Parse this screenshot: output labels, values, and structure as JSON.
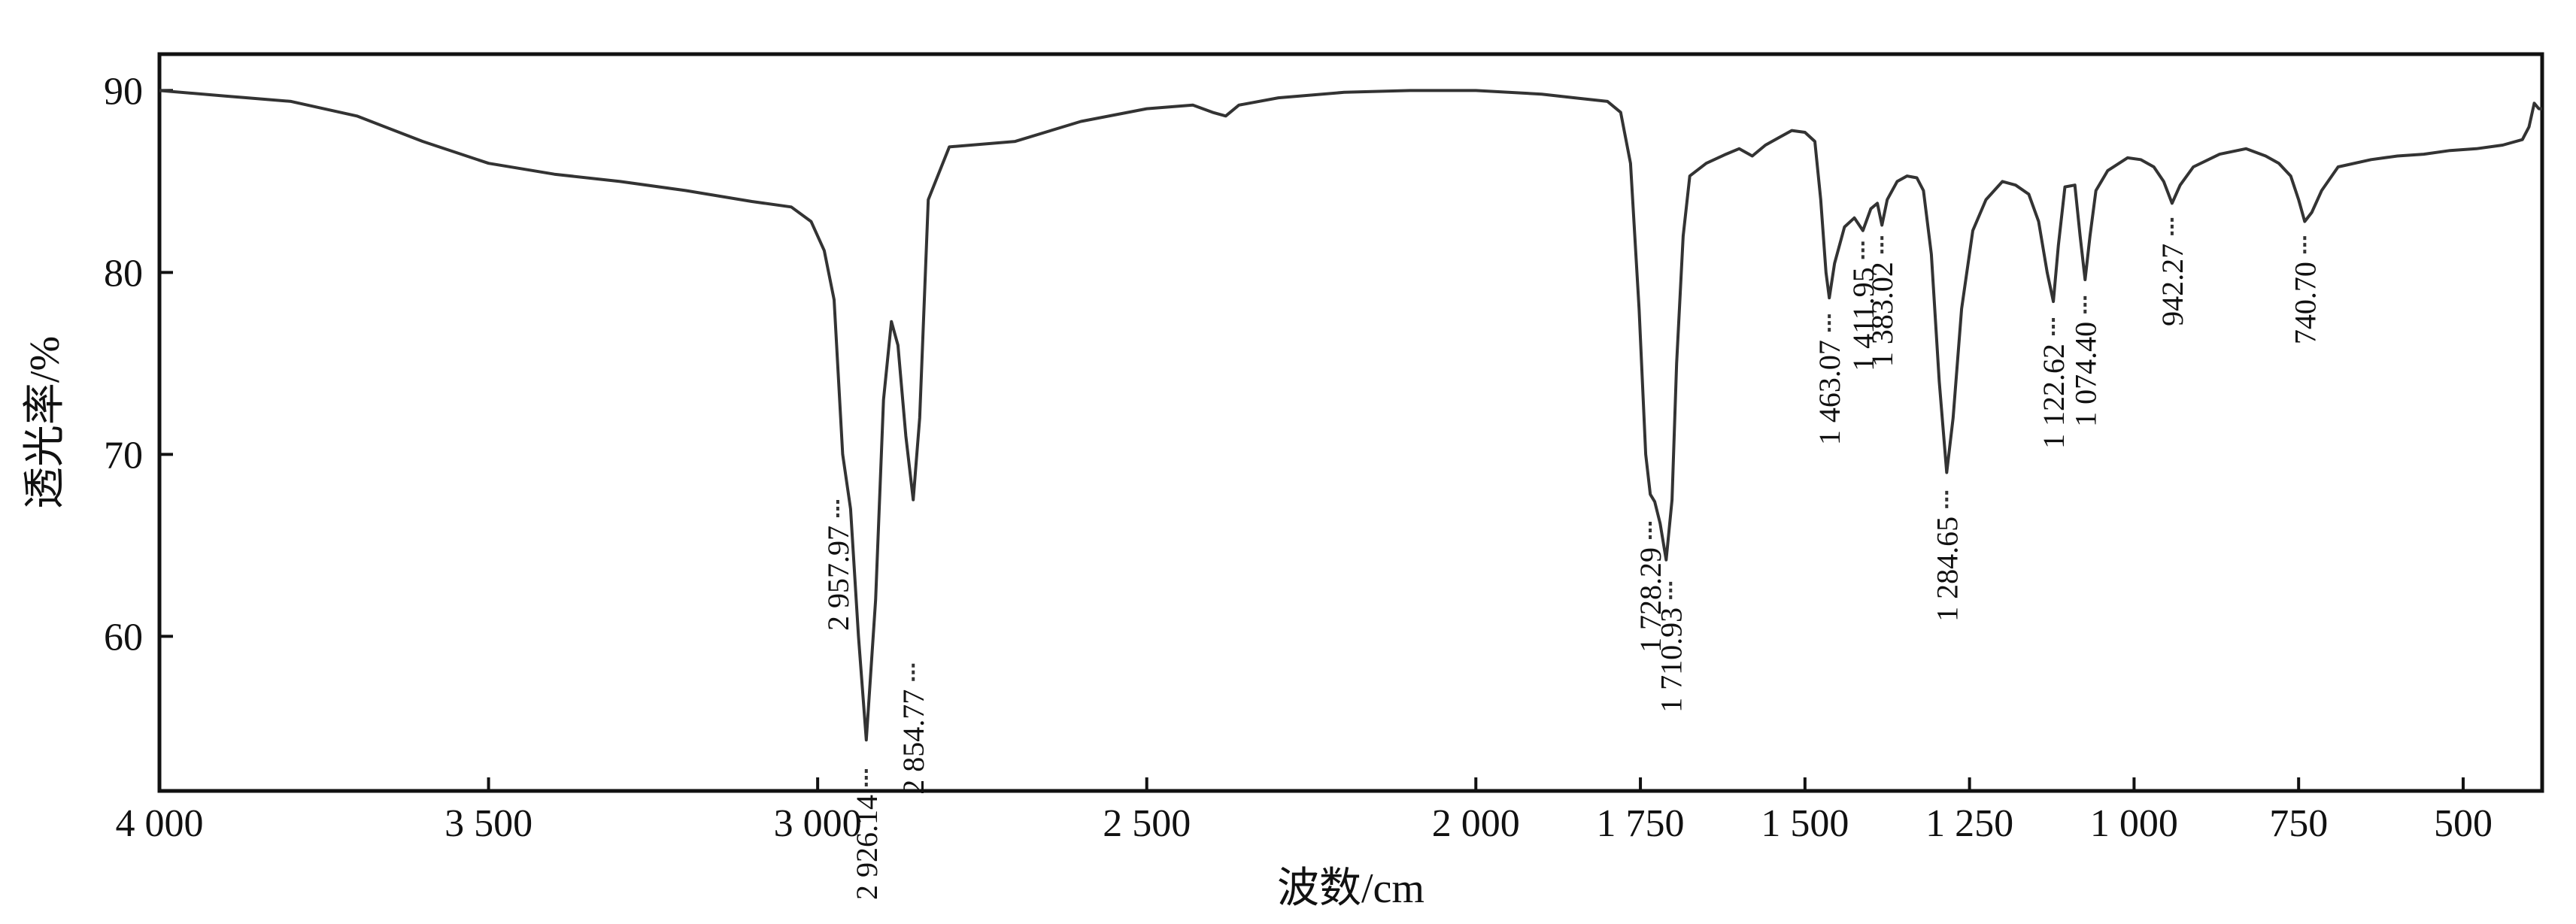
{
  "chart_data": {
    "type": "line",
    "title": "",
    "xlabel": "波数/cm",
    "ylabel": "透光率/%",
    "xlim": [
      4000,
      380
    ],
    "ylim": [
      51.5,
      92
    ],
    "x_reversed": true,
    "grid": false,
    "line_color": "#333333",
    "x_ticks": [
      {
        "value": 4000,
        "label": "4 000"
      },
      {
        "value": 3500,
        "label": "3 500"
      },
      {
        "value": 3000,
        "label": "3 000"
      },
      {
        "value": 2500,
        "label": "2 500"
      },
      {
        "value": 2000,
        "label": "2 000"
      },
      {
        "value": 1750,
        "label": "1 750"
      },
      {
        "value": 1500,
        "label": "1 500"
      },
      {
        "value": 1250,
        "label": "1 250"
      },
      {
        "value": 1000,
        "label": "1 000"
      },
      {
        "value": 750,
        "label": "750"
      },
      {
        "value": 500,
        "label": "500"
      }
    ],
    "y_ticks": [
      {
        "value": 90,
        "label": "90"
      },
      {
        "value": 80,
        "label": "80"
      },
      {
        "value": 70,
        "label": "70"
      },
      {
        "value": 60,
        "label": "60"
      }
    ],
    "series": [
      {
        "name": "",
        "points": [
          [
            4000,
            90.0
          ],
          [
            3900,
            89.7
          ],
          [
            3800,
            89.4
          ],
          [
            3700,
            88.6
          ],
          [
            3600,
            87.2
          ],
          [
            3500,
            86.0
          ],
          [
            3400,
            85.4
          ],
          [
            3300,
            85.0
          ],
          [
            3200,
            84.5
          ],
          [
            3100,
            83.9
          ],
          [
            3040,
            83.6
          ],
          [
            3010,
            82.8
          ],
          [
            2990,
            81.2
          ],
          [
            2975,
            78.5
          ],
          [
            2962,
            70.0
          ],
          [
            2957.97,
            69.0
          ],
          [
            2950,
            67.0
          ],
          [
            2938,
            60.0
          ],
          [
            2926.14,
            54.3
          ],
          [
            2912,
            62.0
          ],
          [
            2900,
            73.0
          ],
          [
            2888,
            77.3
          ],
          [
            2878,
            76.0
          ],
          [
            2866,
            71.0
          ],
          [
            2854.77,
            67.5
          ],
          [
            2845,
            72.0
          ],
          [
            2832,
            84.0
          ],
          [
            2800,
            86.9
          ],
          [
            2700,
            87.2
          ],
          [
            2600,
            88.3
          ],
          [
            2500,
            89.0
          ],
          [
            2430,
            89.2
          ],
          [
            2400,
            88.8
          ],
          [
            2380,
            88.6
          ],
          [
            2360,
            89.2
          ],
          [
            2300,
            89.6
          ],
          [
            2200,
            89.9
          ],
          [
            2100,
            90.0
          ],
          [
            2000,
            90.0
          ],
          [
            1900,
            89.8
          ],
          [
            1850,
            89.6
          ],
          [
            1800,
            89.4
          ],
          [
            1780,
            88.8
          ],
          [
            1765,
            86.0
          ],
          [
            1752,
            78.0
          ],
          [
            1742,
            70.0
          ],
          [
            1735,
            67.8
          ],
          [
            1728.29,
            67.4
          ],
          [
            1720,
            66.2
          ],
          [
            1710.93,
            64.2
          ],
          [
            1702,
            67.5
          ],
          [
            1695,
            75.0
          ],
          [
            1685,
            82.0
          ],
          [
            1675,
            85.3
          ],
          [
            1650,
            86.0
          ],
          [
            1620,
            86.5
          ],
          [
            1600,
            86.8
          ],
          [
            1580,
            86.4
          ],
          [
            1560,
            87.0
          ],
          [
            1540,
            87.4
          ],
          [
            1520,
            87.8
          ],
          [
            1500,
            87.7
          ],
          [
            1485,
            87.2
          ],
          [
            1476,
            84.0
          ],
          [
            1468,
            80.0
          ],
          [
            1463.07,
            78.6
          ],
          [
            1455,
            80.5
          ],
          [
            1440,
            82.5
          ],
          [
            1425,
            83.0
          ],
          [
            1411.95,
            82.3
          ],
          [
            1400,
            83.5
          ],
          [
            1390,
            83.8
          ],
          [
            1383.02,
            82.6
          ],
          [
            1375,
            84.0
          ],
          [
            1360,
            85.0
          ],
          [
            1345,
            85.3
          ],
          [
            1330,
            85.2
          ],
          [
            1320,
            84.5
          ],
          [
            1308,
            81.0
          ],
          [
            1296,
            74.0
          ],
          [
            1284.65,
            69.0
          ],
          [
            1275,
            72.0
          ],
          [
            1262,
            78.0
          ],
          [
            1245,
            82.3
          ],
          [
            1225,
            84.0
          ],
          [
            1200,
            85.0
          ],
          [
            1180,
            84.8
          ],
          [
            1160,
            84.3
          ],
          [
            1145,
            82.8
          ],
          [
            1132,
            80.0
          ],
          [
            1122.62,
            78.4
          ],
          [
            1115,
            81.5
          ],
          [
            1105,
            84.7
          ],
          [
            1090,
            84.8
          ],
          [
            1082,
            82.0
          ],
          [
            1074.4,
            79.6
          ],
          [
            1067,
            82.0
          ],
          [
            1058,
            84.5
          ],
          [
            1040,
            85.6
          ],
          [
            1010,
            86.3
          ],
          [
            990,
            86.2
          ],
          [
            970,
            85.8
          ],
          [
            955,
            85.0
          ],
          [
            942.27,
            83.8
          ],
          [
            930,
            84.8
          ],
          [
            910,
            85.8
          ],
          [
            870,
            86.5
          ],
          [
            830,
            86.8
          ],
          [
            800,
            86.4
          ],
          [
            780,
            86.0
          ],
          [
            762,
            85.3
          ],
          [
            750,
            84.0
          ],
          [
            740.7,
            82.8
          ],
          [
            730,
            83.3
          ],
          [
            715,
            84.5
          ],
          [
            690,
            85.8
          ],
          [
            640,
            86.2
          ],
          [
            600,
            86.4
          ],
          [
            560,
            86.5
          ],
          [
            520,
            86.7
          ],
          [
            480,
            86.8
          ],
          [
            440,
            87.0
          ],
          [
            410,
            87.3
          ],
          [
            400,
            88.0
          ],
          [
            392,
            89.3
          ],
          [
            385,
            89.0
          ],
          [
            380,
            89.0
          ]
        ]
      }
    ],
    "annotations": [
      {
        "x": 2957.97,
        "y": 67.0,
        "label": "2 957.97",
        "side": "below",
        "marker_dx": -10
      },
      {
        "x": 2926.14,
        "y": 52.2,
        "label": "2 926.14",
        "side": "below",
        "marker_dx": 0
      },
      {
        "x": 2854.77,
        "y": 58.0,
        "label": "2 854.77",
        "side": "below",
        "marker_dx": 0
      },
      {
        "x": 1728.29,
        "y": 65.8,
        "label": "1 728.29",
        "side": "below",
        "marker_dx": -6
      },
      {
        "x": 1710.93,
        "y": 62.5,
        "label": "1 710.93",
        "side": "below",
        "marker_dx": 6
      },
      {
        "x": 1463.07,
        "y": 77.2,
        "label": "1 463.07",
        "side": "below",
        "marker_dx": 0
      },
      {
        "x": 1411.95,
        "y": 81.2,
        "label": "1 411.95",
        "side": "below",
        "marker_dx": 0
      },
      {
        "x": 1383.02,
        "y": 81.5,
        "label": "1 383.02",
        "side": "below",
        "marker_dx": 0
      },
      {
        "x": 1284.65,
        "y": 67.5,
        "label": "1 284.65",
        "side": "below",
        "marker_dx": 0
      },
      {
        "x": 1122.62,
        "y": 77.0,
        "label": "1 122.62",
        "side": "below",
        "marker_dx": 0
      },
      {
        "x": 1074.4,
        "y": 78.2,
        "label": "1 074.40",
        "side": "below",
        "marker_dx": 0
      },
      {
        "x": 942.27,
        "y": 82.5,
        "label": "942.27",
        "side": "below",
        "marker_dx": 0
      },
      {
        "x": 740.7,
        "y": 81.5,
        "label": "740.70",
        "side": "below",
        "marker_dx": 0
      }
    ]
  }
}
